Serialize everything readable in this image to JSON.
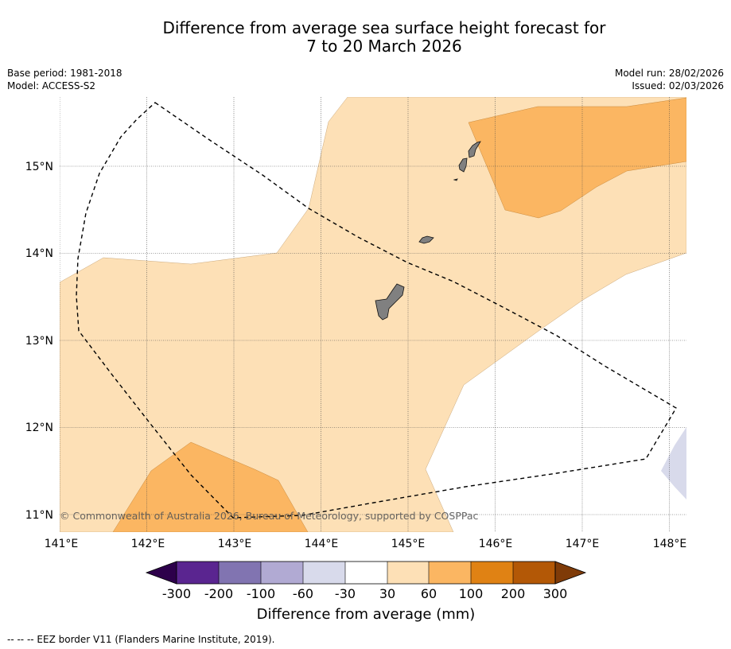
{
  "title": {
    "line1": "Difference from average sea surface height forecast for",
    "line2": "7 to 20 March 2026"
  },
  "meta": {
    "base_period": "Base period: 1981-2018",
    "model": "Model: ACCESS-S2",
    "model_run": "Model run: 28/02/2026",
    "issued": "Issued: 02/03/2026"
  },
  "axes": {
    "lon_labels": [
      "141°E",
      "142°E",
      "143°E",
      "144°E",
      "145°E",
      "146°E",
      "147°E",
      "148°E"
    ],
    "lat_labels": [
      "15°N",
      "14°N",
      "13°N",
      "12°N",
      "11°N"
    ]
  },
  "map": {
    "lon_range": [
      141.0,
      148.2
    ],
    "lat_range": [
      10.8,
      15.8
    ],
    "regions": [
      {
        "class": "30-60",
        "color": "#fde0b6"
      },
      {
        "class": "60-100",
        "color": "#fbb662"
      },
      {
        "class": "-60--30",
        "color": "#d8daeb"
      }
    ],
    "land_color": "#808080"
  },
  "copyright": "© Commonwealth of Australia 2026, Bureau of Meteorology, supported by COSPPac",
  "colorbar": {
    "ticks": [
      "-300",
      "-200",
      "-100",
      "-60",
      "-30",
      "30",
      "60",
      "100",
      "200",
      "300"
    ],
    "colors": [
      "#5a2590",
      "#8174b1",
      "#b1aad3",
      "#d8daeb",
      "#ffffff",
      "#fde0b6",
      "#fbb662",
      "#e08214",
      "#b35806"
    ],
    "extend_low_color": "#2d004b",
    "extend_high_color": "#7f3b08",
    "label": "Difference from average (mm)"
  },
  "footnote": "--  --  -- EEZ border V11 (Flanders Marine Institute, 2019)."
}
